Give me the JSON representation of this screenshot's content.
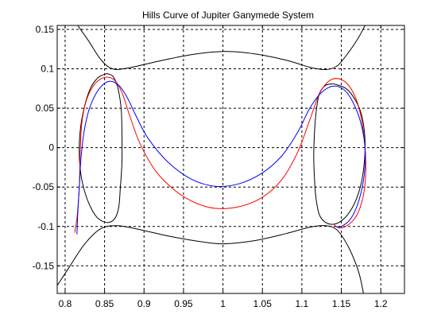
{
  "chart_data": {
    "type": "line",
    "title": "Hills Curve of Jupiter Ganymede System",
    "xlabel": "",
    "ylabel": "",
    "xlim": [
      0.79,
      1.23
    ],
    "ylim": [
      -0.185,
      0.155
    ],
    "x_ticks": [
      0.8,
      0.85,
      0.9,
      0.95,
      1,
      1.05,
      1.1,
      1.15,
      1.2
    ],
    "x_tick_labels": [
      "0.8",
      "0.85",
      "0.9",
      "0.95",
      "1",
      "1.05",
      "1.1",
      "1.15",
      "1.2"
    ],
    "y_ticks": [
      0.15,
      0.1,
      0.05,
      0,
      -0.05,
      -0.1,
      -0.15
    ],
    "y_tick_labels": [
      "0.15",
      "0.1",
      "0.05",
      "0",
      "-0.05",
      "-0.1",
      "-0.15"
    ],
    "grid": true,
    "grid_style": "dashed",
    "series": [
      {
        "color": "#000000",
        "segments": [
          [
            [
              0.816,
              0.155
            ],
            [
              0.83,
              0.135
            ],
            [
              0.845,
              0.112
            ],
            [
              0.86,
              0.1
            ],
            [
              0.88,
              0.101
            ],
            [
              0.92,
              0.11
            ],
            [
              0.96,
              0.118
            ],
            [
              1.0,
              0.122
            ],
            [
              1.04,
              0.119
            ],
            [
              1.08,
              0.111
            ],
            [
              1.11,
              0.102
            ],
            [
              1.13,
              0.099
            ],
            [
              1.145,
              0.104
            ],
            [
              1.16,
              0.122
            ],
            [
              1.172,
              0.14
            ],
            [
              1.18,
              0.155
            ]
          ],
          [
            [
              0.79,
              -0.175
            ],
            [
              0.805,
              -0.152
            ],
            [
              0.825,
              -0.122
            ],
            [
              0.845,
              -0.103
            ],
            [
              0.865,
              -0.099
            ],
            [
              0.89,
              -0.103
            ],
            [
              0.93,
              -0.112
            ],
            [
              0.97,
              -0.119
            ],
            [
              1.0,
              -0.122
            ],
            [
              1.04,
              -0.118
            ],
            [
              1.08,
              -0.109
            ],
            [
              1.11,
              -0.101
            ],
            [
              1.13,
              -0.099
            ],
            [
              1.145,
              -0.105
            ],
            [
              1.16,
              -0.128
            ],
            [
              1.172,
              -0.158
            ],
            [
              1.178,
              -0.185
            ]
          ],
          [
            [
              0.853,
              0.094
            ],
            [
              0.842,
              0.089
            ],
            [
              0.832,
              0.075
            ],
            [
              0.824,
              0.05
            ],
            [
              0.819,
              0.02
            ],
            [
              0.818,
              -0.01
            ],
            [
              0.821,
              -0.04
            ],
            [
              0.829,
              -0.068
            ],
            [
              0.84,
              -0.088
            ],
            [
              0.853,
              -0.095
            ],
            [
              0.863,
              -0.09
            ],
            [
              0.868,
              -0.075
            ],
            [
              0.87,
              -0.05
            ],
            [
              0.872,
              -0.02
            ],
            [
              0.872,
              0.02
            ],
            [
              0.871,
              0.05
            ],
            [
              0.867,
              0.075
            ],
            [
              0.861,
              0.09
            ],
            [
              0.853,
              0.094
            ]
          ],
          [
            [
              1.14,
              0.081
            ],
            [
              1.156,
              0.075
            ],
            [
              1.168,
              0.06
            ],
            [
              1.176,
              0.04
            ],
            [
              1.18,
              0.01
            ],
            [
              1.179,
              -0.02
            ],
            [
              1.174,
              -0.05
            ],
            [
              1.164,
              -0.076
            ],
            [
              1.15,
              -0.093
            ],
            [
              1.135,
              -0.097
            ],
            [
              1.123,
              -0.087
            ],
            [
              1.118,
              -0.065
            ],
            [
              1.116,
              -0.04
            ],
            [
              1.115,
              -0.01
            ],
            [
              1.116,
              0.02
            ],
            [
              1.118,
              0.045
            ],
            [
              1.122,
              0.068
            ],
            [
              1.13,
              0.079
            ],
            [
              1.14,
              0.081
            ]
          ]
        ]
      },
      {
        "color": "#ff0000",
        "segments": [
          [
            [
              0.812,
              -0.108
            ],
            [
              0.815,
              -0.09
            ],
            [
              0.818,
              -0.05
            ],
            [
              0.819,
              -0.01
            ],
            [
              0.821,
              0.03
            ],
            [
              0.827,
              0.06
            ],
            [
              0.837,
              0.08
            ],
            [
              0.85,
              0.089
            ],
            [
              0.862,
              0.086
            ],
            [
              0.872,
              0.07
            ],
            [
              0.882,
              0.04
            ],
            [
              0.895,
              0.005
            ],
            [
              0.915,
              -0.03
            ],
            [
              0.94,
              -0.055
            ],
            [
              0.965,
              -0.07
            ],
            [
              0.99,
              -0.077
            ],
            [
              1.02,
              -0.075
            ],
            [
              1.05,
              -0.063
            ],
            [
              1.075,
              -0.04
            ],
            [
              1.095,
              -0.005
            ],
            [
              1.11,
              0.035
            ],
            [
              1.122,
              0.068
            ],
            [
              1.135,
              0.085
            ],
            [
              1.148,
              0.087
            ],
            [
              1.16,
              0.078
            ],
            [
              1.171,
              0.055
            ],
            [
              1.178,
              0.02
            ],
            [
              1.181,
              -0.02
            ],
            [
              1.179,
              -0.055
            ],
            [
              1.171,
              -0.083
            ],
            [
              1.16,
              -0.097
            ],
            [
              1.148,
              -0.102
            ],
            [
              1.14,
              -0.097
            ]
          ]
        ]
      },
      {
        "color": "#0000ff",
        "segments": [
          [
            [
              0.815,
              -0.11
            ],
            [
              0.816,
              -0.085
            ],
            [
              0.818,
              -0.05
            ],
            [
              0.82,
              -0.015
            ],
            [
              0.824,
              0.02
            ],
            [
              0.831,
              0.05
            ],
            [
              0.842,
              0.073
            ],
            [
              0.855,
              0.084
            ],
            [
              0.868,
              0.079
            ],
            [
              0.879,
              0.063
            ],
            [
              0.89,
              0.04
            ],
            [
              0.905,
              0.012
            ],
            [
              0.93,
              -0.018
            ],
            [
              0.96,
              -0.04
            ],
            [
              0.99,
              -0.049
            ],
            [
              1.02,
              -0.046
            ],
            [
              1.05,
              -0.032
            ],
            [
              1.075,
              -0.01
            ],
            [
              1.095,
              0.02
            ],
            [
              1.11,
              0.05
            ],
            [
              1.125,
              0.07
            ],
            [
              1.14,
              0.078
            ],
            [
              1.154,
              0.073
            ],
            [
              1.166,
              0.055
            ],
            [
              1.175,
              0.03
            ],
            [
              1.18,
              0.0
            ],
            [
              1.179,
              -0.035
            ],
            [
              1.172,
              -0.068
            ],
            [
              1.162,
              -0.09
            ],
            [
              1.15,
              -0.1
            ],
            [
              1.142,
              -0.1
            ]
          ]
        ]
      }
    ]
  }
}
